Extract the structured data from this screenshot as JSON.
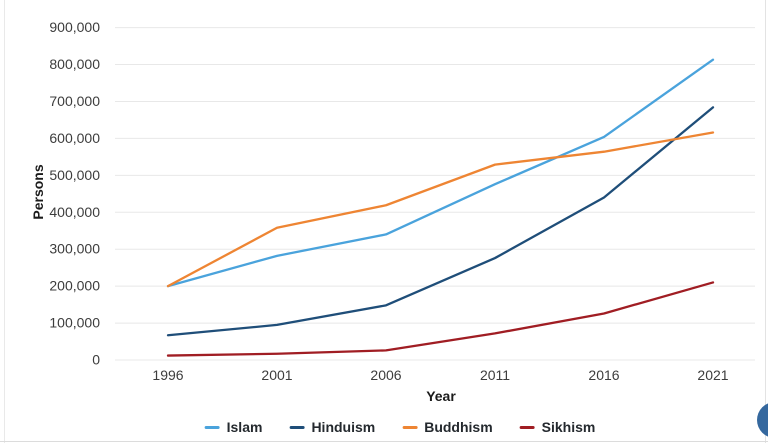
{
  "chart_data": {
    "type": "line",
    "title": "",
    "xlabel": "Year",
    "ylabel": "Persons",
    "x": [
      1996,
      2001,
      2006,
      2011,
      2016,
      2021
    ],
    "series": [
      {
        "name": "Islam",
        "color": "#4AA3DC",
        "values": [
          200000,
          282000,
          340000,
          476000,
          604000,
          813000
        ]
      },
      {
        "name": "Hinduism",
        "color": "#1F4E79",
        "values": [
          67000,
          95000,
          148000,
          276000,
          440000,
          684000
        ]
      },
      {
        "name": "Buddhism",
        "color": "#EE8533",
        "values": [
          200000,
          358000,
          419000,
          529000,
          564000,
          616000
        ]
      },
      {
        "name": "Sikhism",
        "color": "#A01D23",
        "values": [
          12000,
          17000,
          26000,
          72000,
          126000,
          210000
        ]
      }
    ],
    "ylim": [
      0,
      900000
    ],
    "y_tick_step": 100000,
    "y_tick_labels": [
      "0",
      "100,000",
      "200,000",
      "300,000",
      "400,000",
      "500,000",
      "600,000",
      "700,000",
      "800,000",
      "900,000"
    ],
    "grid": "horizontal",
    "gridline_color": "#e8e8e8",
    "legend_position": "bottom"
  },
  "ui": {
    "fab_color": "#35689E"
  }
}
